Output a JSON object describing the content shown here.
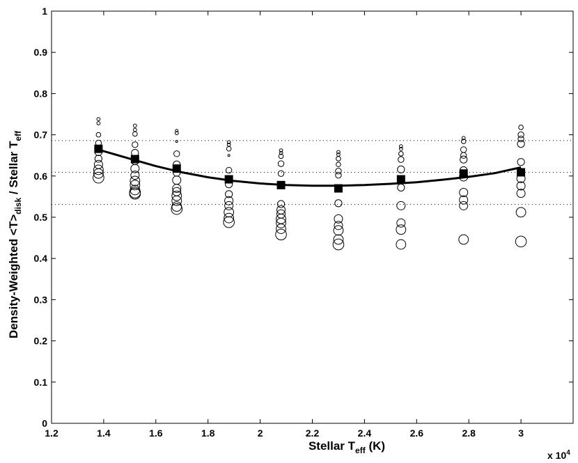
{
  "chart_data": {
    "type": "scatter",
    "xlabel": {
      "prefix": "Stellar T",
      "sub": "eff",
      "suffix": " (K)"
    },
    "ylabel": {
      "p1": "Density-Weighted <T>",
      "s1": "disk",
      "p2": " / Stellar T",
      "s2": "eff"
    },
    "x_multiplier_label": {
      "base": "x 10",
      "exp": "4"
    },
    "xlim": [
      1.2,
      3.2
    ],
    "ylim": [
      0,
      1
    ],
    "xticks": [
      1.2,
      1.4,
      1.6,
      1.8,
      2,
      2.2,
      2.4,
      2.6,
      2.8,
      3
    ],
    "xtick_labels": [
      "1.2",
      "1.4",
      "1.6",
      "1.8",
      "2",
      "2.2",
      "2.4",
      "2.6",
      "2.8",
      "3"
    ],
    "yticks": [
      0,
      0.1,
      0.2,
      0.3,
      0.4,
      0.5,
      0.6,
      0.7,
      0.8,
      0.9,
      1
    ],
    "ytick_labels": [
      "0",
      "0.1",
      "0.2",
      "0.3",
      "0.4",
      "0.5",
      "0.6",
      "0.7",
      "0.8",
      "0.9",
      "1"
    ],
    "grid": false,
    "reference_lines_y": [
      0.686,
      0.609,
      0.531
    ],
    "fit_curve": {
      "x_start": 1.38,
      "x_end": 3.0,
      "points": [
        [
          1.38,
          0.664
        ],
        [
          1.5,
          0.642
        ],
        [
          1.6,
          0.624
        ],
        [
          1.7,
          0.609
        ],
        [
          1.8,
          0.597
        ],
        [
          1.9,
          0.588
        ],
        [
          2.0,
          0.582
        ],
        [
          2.1,
          0.578
        ],
        [
          2.2,
          0.5765
        ],
        [
          2.3,
          0.5765
        ],
        [
          2.4,
          0.578
        ],
        [
          2.5,
          0.581
        ],
        [
          2.6,
          0.585
        ],
        [
          2.7,
          0.591
        ],
        [
          2.8,
          0.598
        ],
        [
          2.9,
          0.607
        ],
        [
          3.0,
          0.621
        ]
      ]
    },
    "series": [
      {
        "marker": "filled-square",
        "points": [
          [
            1.38,
            0.666
          ],
          [
            1.52,
            0.641
          ],
          [
            1.68,
            0.618
          ],
          [
            1.88,
            0.592
          ],
          [
            2.08,
            0.578
          ],
          [
            2.3,
            0.57
          ],
          [
            2.54,
            0.592
          ],
          [
            2.78,
            0.606
          ],
          [
            3.0,
            0.609
          ]
        ]
      },
      {
        "marker": "open-circle-sized",
        "groups": [
          {
            "x": 1.38,
            "points": [
              [
                0.738,
                2
              ],
              [
                0.728,
                2
              ],
              [
                0.7,
                3
              ],
              [
                0.68,
                4
              ],
              [
                0.658,
                5
              ],
              [
                0.642,
                5
              ],
              [
                0.628,
                6
              ],
              [
                0.615,
                7
              ],
              [
                0.606,
                7
              ],
              [
                0.596,
                8
              ]
            ]
          },
          {
            "x": 1.52,
            "points": [
              [
                0.722,
                2
              ],
              [
                0.712,
                2
              ],
              [
                0.702,
                3
              ],
              [
                0.676,
                4
              ],
              [
                0.656,
                5
              ],
              [
                0.636,
                5
              ],
              [
                0.618,
                6
              ],
              [
                0.602,
                6
              ],
              [
                0.588,
                7
              ],
              [
                0.578,
                7
              ],
              [
                0.566,
                7
              ],
              [
                0.56,
                8
              ],
              [
                0.557,
                8
              ]
            ]
          },
          {
            "x": 1.68,
            "points": [
              [
                0.71,
                1.5
              ],
              [
                0.704,
                2
              ],
              [
                0.684,
                1
              ],
              [
                0.654,
                4
              ],
              [
                0.628,
                5
              ],
              [
                0.608,
                5
              ],
              [
                0.59,
                6
              ],
              [
                0.57,
                6
              ],
              [
                0.562,
                6
              ],
              [
                0.552,
                7
              ],
              [
                0.54,
                7
              ],
              [
                0.526,
                7
              ],
              [
                0.52,
                8
              ]
            ]
          },
          {
            "x": 1.88,
            "points": [
              [
                0.682,
                2
              ],
              [
                0.676,
                2
              ],
              [
                0.666,
                3
              ],
              [
                0.65,
                1
              ],
              [
                0.614,
                4
              ],
              [
                0.58,
                5
              ],
              [
                0.556,
                5
              ],
              [
                0.54,
                6
              ],
              [
                0.528,
                6
              ],
              [
                0.512,
                7
              ],
              [
                0.498,
                7
              ],
              [
                0.488,
                8
              ]
            ]
          },
          {
            "x": 2.08,
            "points": [
              [
                0.662,
                2
              ],
              [
                0.656,
                2
              ],
              [
                0.648,
                3
              ],
              [
                0.63,
                4
              ],
              [
                0.606,
                4
              ],
              [
                0.532,
                5
              ],
              [
                0.518,
                6
              ],
              [
                0.508,
                6
              ],
              [
                0.496,
                7
              ],
              [
                0.486,
                7
              ],
              [
                0.472,
                7
              ],
              [
                0.458,
                8
              ]
            ]
          },
          {
            "x": 2.3,
            "points": [
              [
                0.658,
                2
              ],
              [
                0.652,
                2
              ],
              [
                0.642,
                3
              ],
              [
                0.628,
                3
              ],
              [
                0.612,
                4
              ],
              [
                0.602,
                4
              ],
              [
                0.534,
                5
              ],
              [
                0.496,
                6
              ],
              [
                0.48,
                6
              ],
              [
                0.468,
                7
              ],
              [
                0.446,
                7
              ],
              [
                0.434,
                8
              ]
            ]
          },
          {
            "x": 2.54,
            "points": [
              [
                0.672,
                2
              ],
              [
                0.666,
                2
              ],
              [
                0.654,
                3
              ],
              [
                0.64,
                4
              ],
              [
                0.616,
                5
              ],
              [
                0.572,
                5
              ],
              [
                0.528,
                6
              ],
              [
                0.486,
                6
              ],
              [
                0.47,
                7
              ],
              [
                0.434,
                7
              ]
            ]
          },
          {
            "x": 2.78,
            "points": [
              [
                0.692,
                2
              ],
              [
                0.684,
                3
              ],
              [
                0.664,
                4
              ],
              [
                0.65,
                4
              ],
              [
                0.64,
                5
              ],
              [
                0.614,
                5
              ],
              [
                0.598,
                6
              ],
              [
                0.56,
                6
              ],
              [
                0.542,
                6
              ],
              [
                0.528,
                6
              ],
              [
                0.446,
                7
              ]
            ]
          },
          {
            "x": 3.0,
            "points": [
              [
                0.718,
                3
              ],
              [
                0.7,
                4
              ],
              [
                0.69,
                4
              ],
              [
                0.678,
                5
              ],
              [
                0.634,
                5
              ],
              [
                0.594,
                6
              ],
              [
                0.576,
                6
              ],
              [
                0.558,
                6
              ],
              [
                0.512,
                7
              ],
              [
                0.441,
                8
              ]
            ]
          }
        ]
      }
    ]
  }
}
